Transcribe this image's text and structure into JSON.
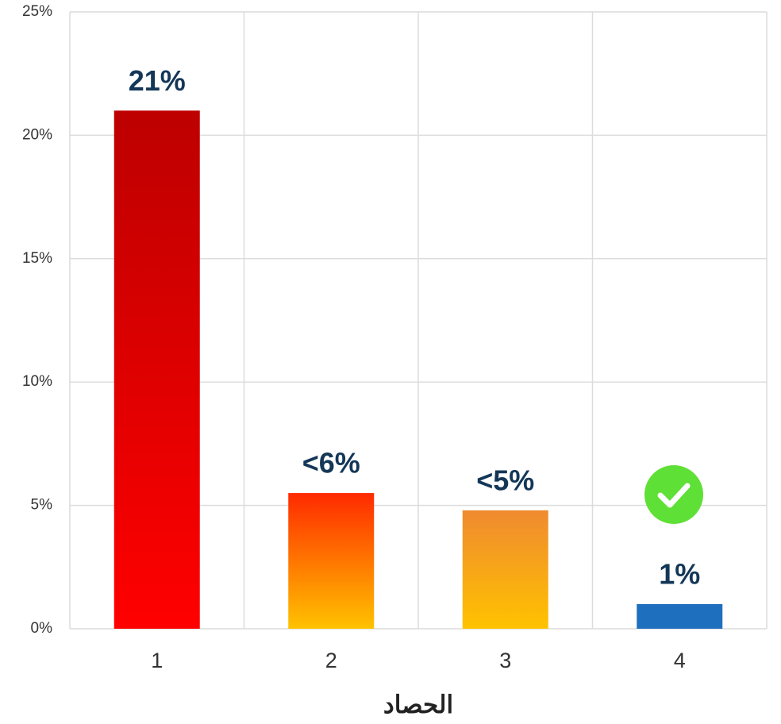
{
  "chart_data": {
    "type": "bar",
    "categories": [
      "1",
      "2",
      "3",
      "4"
    ],
    "values": [
      21,
      5.5,
      4.8,
      1
    ],
    "value_labels": [
      "21%",
      "<6%",
      "<5%",
      "1%"
    ],
    "bar_gradients": [
      [
        "#bd0000",
        "#ff0000"
      ],
      [
        "#ff2a00",
        "#ffc200"
      ],
      [
        "#ef8a30",
        "#ffc200"
      ],
      [
        "#1f6fbf",
        "#1f6fbf"
      ]
    ],
    "xlabel": "الحصاد",
    "ylim": [
      0,
      25
    ],
    "yticks": [
      {
        "value": 0,
        "label": "0%"
      },
      {
        "value": 5,
        "label": "5%"
      },
      {
        "value": 10,
        "label": "10%"
      },
      {
        "value": 15,
        "label": "15%"
      },
      {
        "value": 20,
        "label": "20%"
      },
      {
        "value": 25,
        "label": "25%"
      }
    ],
    "grid": true
  }
}
